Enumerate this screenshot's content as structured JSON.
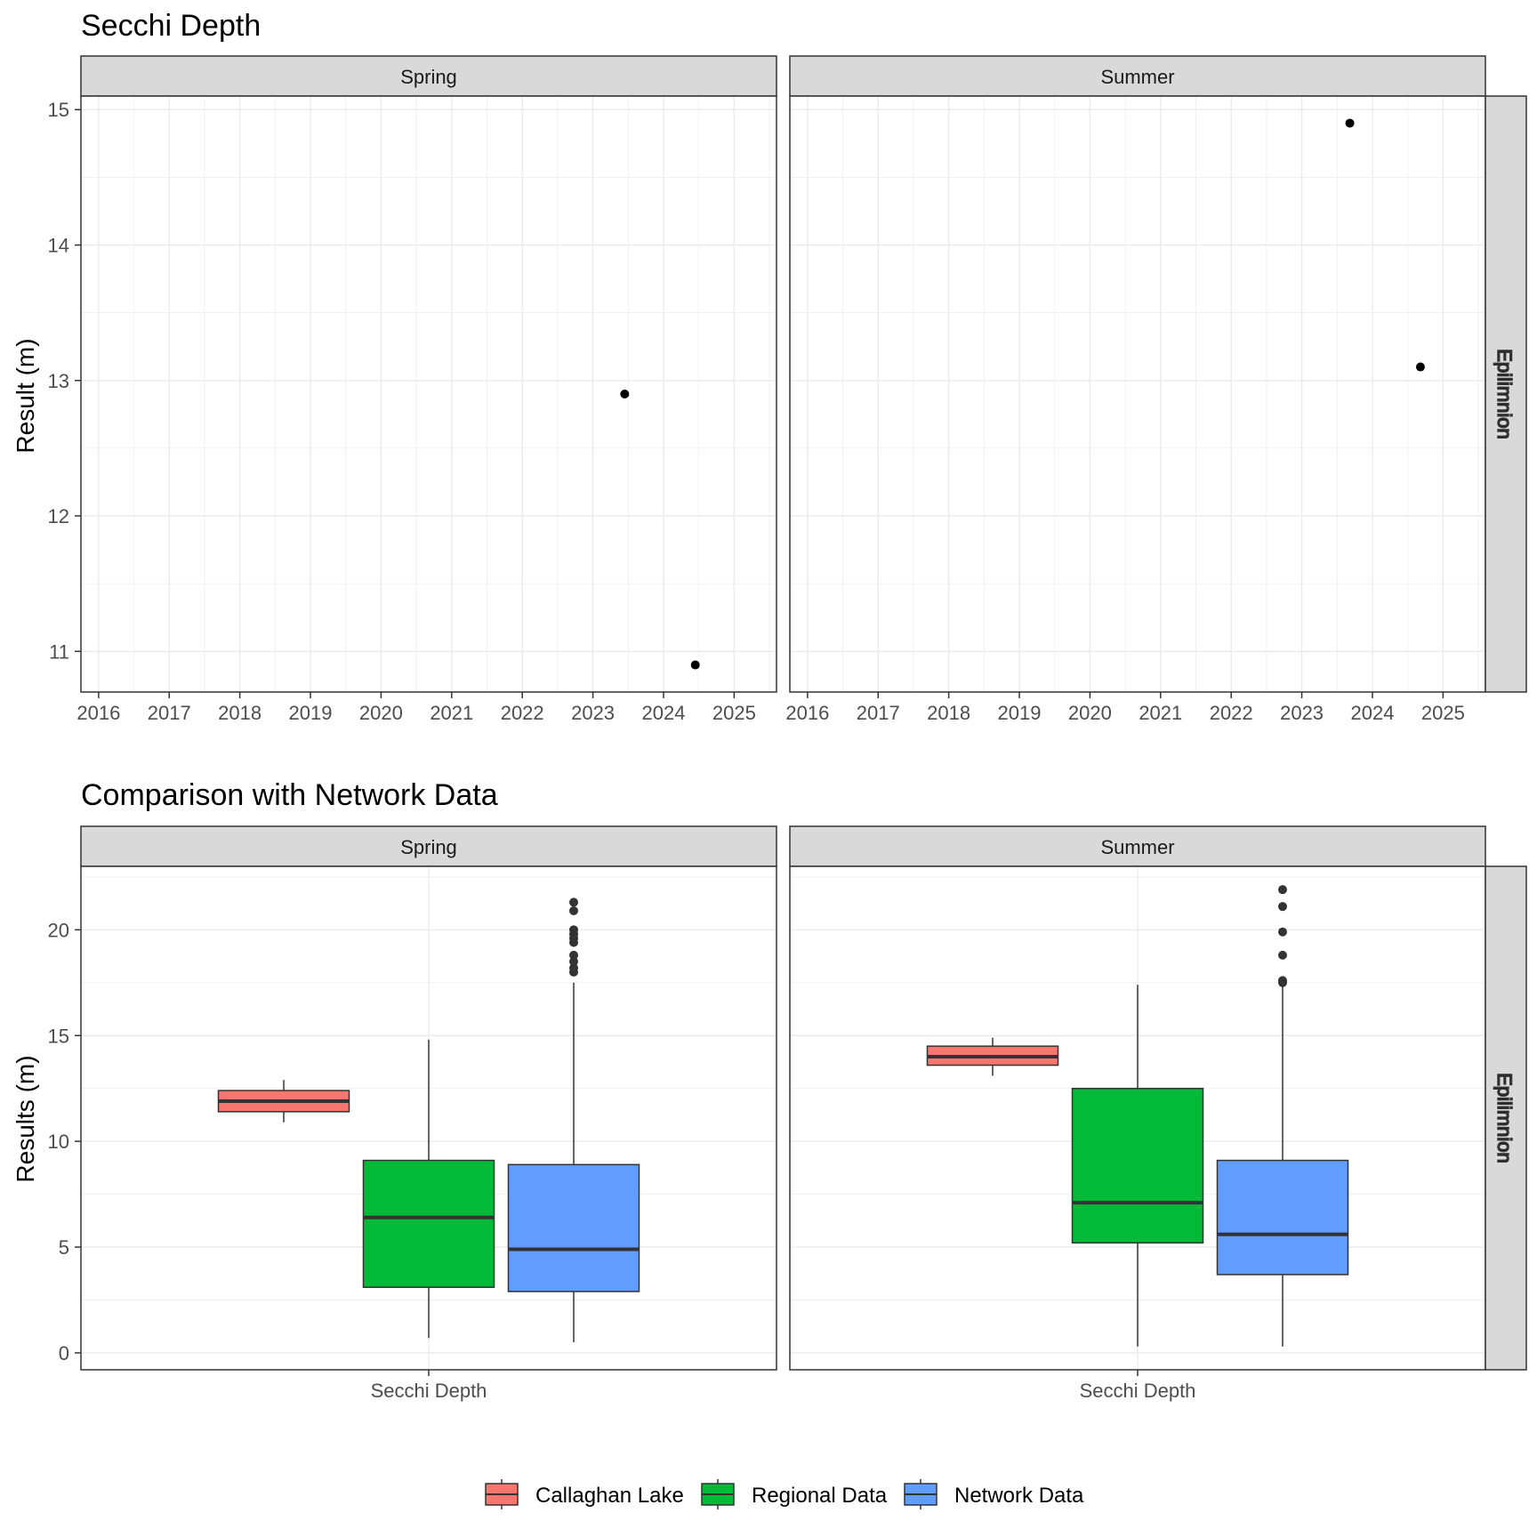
{
  "colors": {
    "callaghan": "#F8766D",
    "regional": "#00BA38",
    "network": "#619CFF",
    "strip_bg": "#D9D9D9",
    "grid": "#EBEBEB",
    "point": "#000000",
    "outlier": "#333333"
  },
  "chart_data": [
    {
      "type": "scatter",
      "title": "Secchi Depth",
      "ylabel": "Result (m)",
      "xlabel": "",
      "ylim": [
        10.7,
        15.1
      ],
      "yticks": [
        11,
        12,
        13,
        14,
        15
      ],
      "xlim": [
        2015.75,
        2025.6
      ],
      "xticks": [
        "2016",
        "2017",
        "2018",
        "2019",
        "2020",
        "2021",
        "2022",
        "2023",
        "2024",
        "2025"
      ],
      "grid": true,
      "facet_row": "Epilimnion",
      "panels": [
        {
          "label": "Spring",
          "points": [
            {
              "x": 2023.45,
              "y": 12.9
            },
            {
              "x": 2024.45,
              "y": 10.9
            }
          ]
        },
        {
          "label": "Summer",
          "points": [
            {
              "x": 2023.68,
              "y": 14.9
            },
            {
              "x": 2024.68,
              "y": 13.1
            }
          ]
        }
      ]
    },
    {
      "type": "box",
      "title": "Comparison with Network Data",
      "ylabel": "Results (m)",
      "ylim": [
        -0.8,
        23
      ],
      "yticks": [
        0,
        5,
        10,
        15,
        20
      ],
      "category": "Secchi Depth",
      "grid": true,
      "facet_row": "Epilimnion",
      "legend_position": "bottom",
      "series": [
        {
          "name": "Callaghan Lake",
          "color_key": "callaghan"
        },
        {
          "name": "Regional Data",
          "color_key": "regional"
        },
        {
          "name": "Network Data",
          "color_key": "network"
        }
      ],
      "panels": [
        {
          "label": "Spring",
          "boxes": [
            {
              "series": "Callaghan Lake",
              "whisker_low": 10.9,
              "q1": 11.4,
              "median": 11.9,
              "q3": 12.4,
              "whisker_high": 12.9,
              "outliers": []
            },
            {
              "series": "Regional Data",
              "whisker_low": 0.7,
              "q1": 3.1,
              "median": 6.4,
              "q3": 9.1,
              "whisker_high": 14.8,
              "outliers": []
            },
            {
              "series": "Network Data",
              "whisker_low": 0.5,
              "q1": 2.9,
              "median": 4.9,
              "q3": 8.9,
              "whisker_high": 17.5,
              "outliers": [
                18.0,
                18.2,
                18.5,
                18.8,
                19.4,
                19.6,
                19.8,
                20.0,
                20.9,
                21.3
              ]
            }
          ]
        },
        {
          "label": "Summer",
          "boxes": [
            {
              "series": "Callaghan Lake",
              "whisker_low": 13.1,
              "q1": 13.6,
              "median": 14.0,
              "q3": 14.5,
              "whisker_high": 14.9,
              "outliers": []
            },
            {
              "series": "Regional Data",
              "whisker_low": 0.3,
              "q1": 5.2,
              "median": 7.1,
              "q3": 12.5,
              "whisker_high": 17.4,
              "outliers": []
            },
            {
              "series": "Network Data",
              "whisker_low": 0.3,
              "q1": 3.7,
              "median": 5.6,
              "q3": 9.1,
              "whisker_high": 17.3,
              "outliers": [
                17.5,
                17.6,
                18.8,
                19.9,
                21.1,
                21.9
              ]
            }
          ]
        }
      ]
    }
  ]
}
